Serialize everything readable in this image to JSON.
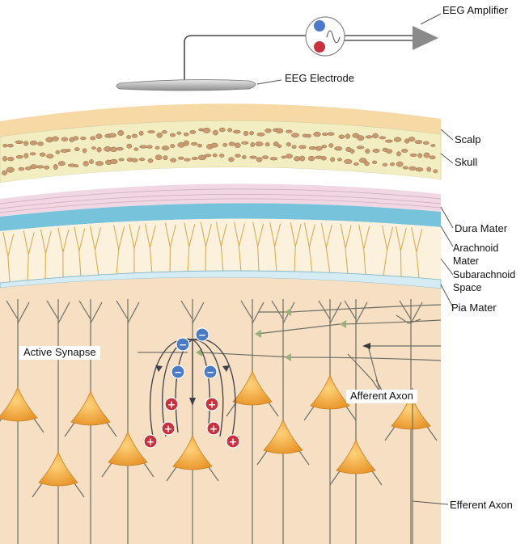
{
  "labels": {
    "eeg_amplifier": "EEG Amplifier",
    "eeg_electrode": "EEG Electrode",
    "scalp": "Scalp",
    "skull": "Skull",
    "dura_mater": "Dura Mater",
    "arachnoid_1": "Arachnoid",
    "arachnoid_2": "Mater",
    "subarachnoid_1": "Subarachnoid",
    "subarachnoid_2": "Space",
    "pia_mater": "Pia Mater",
    "active_synapse": "Active Synapse",
    "afferent_axon": "Afferent Axon",
    "efferent_axon": "Efferent Axon"
  },
  "charges": {
    "negative": "−",
    "positive": "+"
  },
  "colors": {
    "scalp": "#f7d9a6",
    "skull": "#f3eec1",
    "skull_pebble": "#c99a70",
    "dura": "#f1d7e3",
    "arachnoid_band": "#78c3dc",
    "subarachnoid": "#fbf1dc",
    "subarachnoid_fiber": "#d6a648",
    "cortex": "#f6dfc3",
    "neuron": "#f3a93c",
    "negative_ion": "#4c7bc5",
    "positive_ion": "#c8323f",
    "electrode": "#b9b9b9"
  }
}
